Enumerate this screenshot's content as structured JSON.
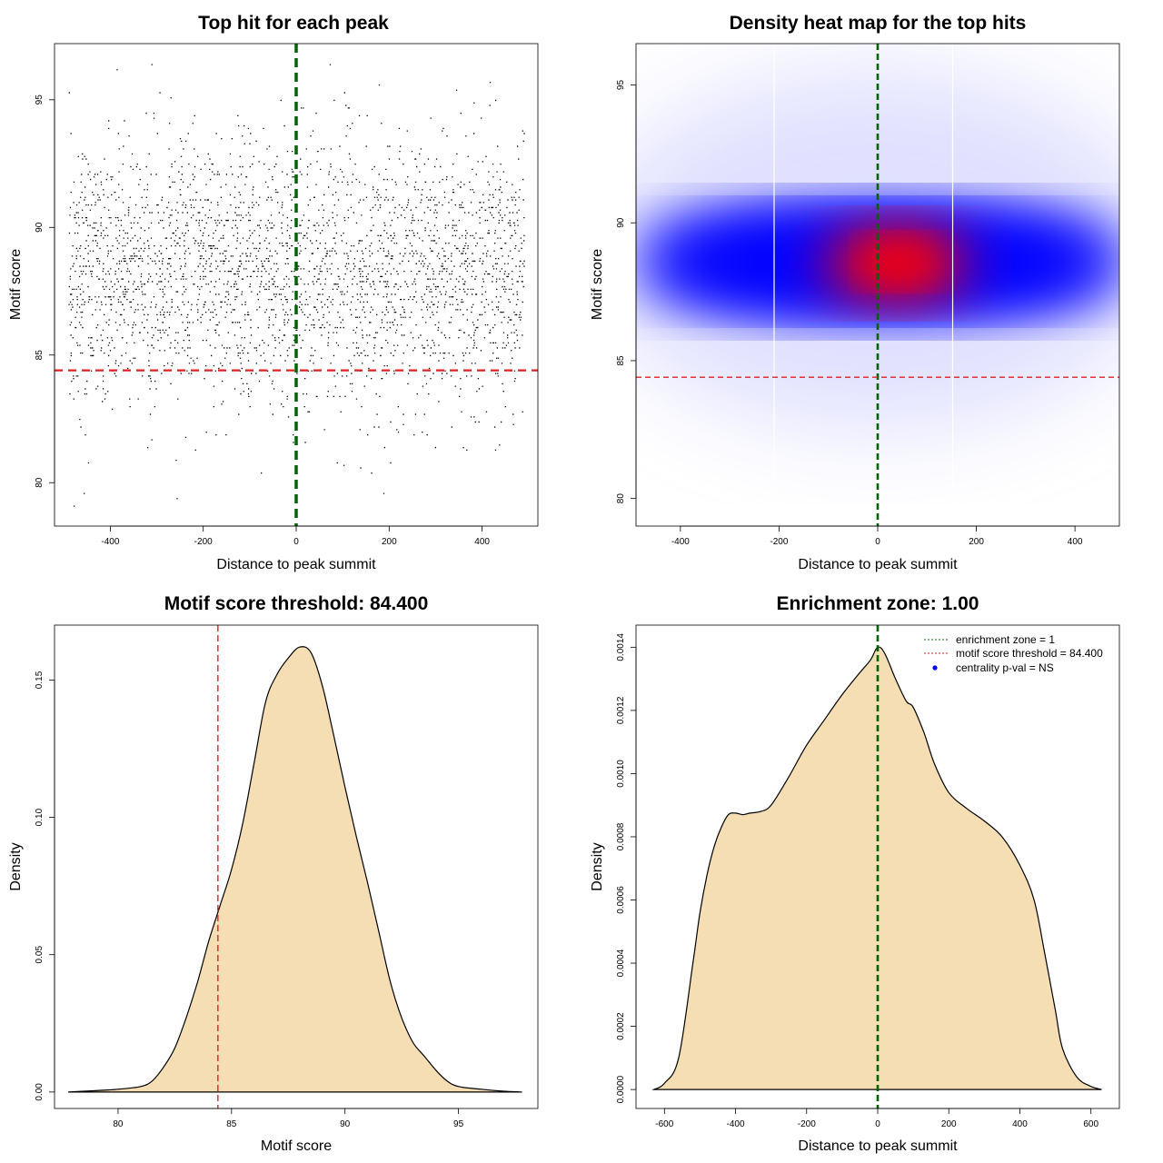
{
  "chart_data": [
    {
      "id": "scatter",
      "type": "scatter",
      "title": "Top hit for each peak",
      "xlabel": "Distance to peak summit",
      "ylabel": "Motif score",
      "xlim": [
        -520,
        520
      ],
      "ylim": [
        78.3,
        97.2
      ],
      "xticks": [
        -400,
        -200,
        0,
        200,
        400
      ],
      "xtick_labels": [
        "-400",
        "-200",
        "0",
        "200",
        "400"
      ],
      "yticks": [
        80,
        85,
        90,
        95
      ],
      "ytick_labels": [
        "80",
        "85",
        "90",
        "95"
      ],
      "vline": {
        "x": 0,
        "color": "#006400",
        "style": "dashed"
      },
      "hline": {
        "y": 84.4,
        "color": "#dd2222",
        "style": "dashed"
      },
      "points_description_count": 3000,
      "point_distribution": {
        "x_range": [
          -490,
          490
        ],
        "y_mean": 88.2,
        "y_sd": 2.6,
        "y_min": 79,
        "y_max": 96.5
      },
      "point_color": "#000000"
    },
    {
      "id": "heatmap",
      "type": "heatmap",
      "title": "Density heat map for the top hits",
      "xlabel": "Distance to peak summit",
      "ylabel": "Motif score",
      "xlim": [
        -490,
        490
      ],
      "ylim": [
        79.0,
        96.5
      ],
      "xticks": [
        -400,
        -200,
        0,
        200,
        400
      ],
      "xtick_labels": [
        "-400",
        "-200",
        "0",
        "200",
        "400"
      ],
      "yticks": [
        80,
        85,
        90,
        95
      ],
      "ytick_labels": [
        "80",
        "85",
        "90",
        "95"
      ],
      "vline": {
        "x": 0,
        "color": "#006400",
        "style": "dashed"
      },
      "hline": {
        "y": 84.4,
        "color": "#dd2222",
        "style": "dashed"
      },
      "white_vlines": [
        -210,
        152
      ],
      "peak": {
        "x": 55,
        "y": 88.5
      },
      "colors": [
        "#ffffff",
        "#0000ff",
        "#ff0000"
      ]
    },
    {
      "id": "scoredens",
      "type": "area",
      "title": "Motif score threshold: 84.400",
      "xlabel": "Motif score",
      "ylabel": "Density",
      "xlim": [
        77.2,
        98.5
      ],
      "ylim": [
        -0.006,
        0.17
      ],
      "xticks": [
        80,
        85,
        90,
        95
      ],
      "xtick_labels": [
        "80",
        "85",
        "90",
        "95"
      ],
      "yticks": [
        0.0,
        0.05,
        0.1,
        0.15
      ],
      "ytick_labels": [
        "0.00",
        "0.05",
        "0.10",
        "0.15"
      ],
      "vline": {
        "x": 84.4,
        "color": "#dd2222",
        "style": "dashed"
      },
      "fill": "#f5deb3",
      "x": [
        77.8,
        79,
        80,
        81,
        81.5,
        82,
        82.5,
        83,
        83.5,
        84,
        84.5,
        85,
        85.5,
        86,
        86.5,
        87,
        87.5,
        88,
        88.5,
        89,
        89.5,
        90,
        90.5,
        91,
        91.5,
        92,
        92.5,
        93,
        93.5,
        94,
        94.5,
        95,
        96,
        97,
        97.8
      ],
      "y": [
        0.0,
        0.0005,
        0.001,
        0.002,
        0.004,
        0.009,
        0.016,
        0.027,
        0.04,
        0.055,
        0.068,
        0.081,
        0.098,
        0.12,
        0.142,
        0.152,
        0.158,
        0.162,
        0.16,
        0.148,
        0.13,
        0.111,
        0.093,
        0.076,
        0.058,
        0.04,
        0.027,
        0.018,
        0.013,
        0.008,
        0.004,
        0.002,
        0.001,
        0.0003,
        0.0
      ]
    },
    {
      "id": "distdens",
      "type": "area",
      "title": "Enrichment zone: 1.00",
      "xlabel": "Distance to peak summit",
      "ylabel": "Density",
      "xlim": [
        -680,
        680
      ],
      "ylim": [
        -6e-05,
        0.00147
      ],
      "xticks": [
        -600,
        -400,
        -200,
        0,
        200,
        400,
        600
      ],
      "xtick_labels": [
        "-600",
        "-400",
        "-200",
        "0",
        "200",
        "400",
        "600"
      ],
      "yticks": [
        0.0,
        0.0002,
        0.0004,
        0.0006,
        0.0008,
        0.001,
        0.0012,
        0.0014
      ],
      "ytick_labels": [
        "0.0000",
        "0.0002",
        "0.0004",
        "0.0006",
        "0.0008",
        "0.0010",
        "0.0012",
        "0.0014"
      ],
      "vline": {
        "x": 0,
        "color": "#006400",
        "style": "dashed"
      },
      "fill": "#f5deb3",
      "x": [
        -630,
        -600,
        -560,
        -520,
        -500,
        -480,
        -460,
        -440,
        -420,
        -400,
        -380,
        -360,
        -330,
        -300,
        -250,
        -200,
        -150,
        -100,
        -50,
        -20,
        0,
        20,
        50,
        80,
        100,
        130,
        160,
        200,
        250,
        300,
        350,
        400,
        440,
        470,
        500,
        520,
        560,
        600,
        630
      ],
      "y": [
        0.0,
        2e-05,
        0.0001,
        0.0004,
        0.00056,
        0.00068,
        0.00077,
        0.00083,
        0.00087,
        0.000875,
        0.00087,
        0.000875,
        0.00088,
        0.0009,
        0.00099,
        0.00109,
        0.00117,
        0.00125,
        0.00132,
        0.00136,
        0.0014,
        0.00138,
        0.0013,
        0.00123,
        0.00121,
        0.00113,
        0.00103,
        0.00094,
        0.00089,
        0.00085,
        0.0008,
        0.00071,
        0.0006,
        0.00043,
        0.00025,
        0.00013,
        4e-05,
        1e-05,
        0.0
      ],
      "legend": [
        {
          "label": "enrichment zone = 1",
          "color": "#006400",
          "kind": "dotted-line"
        },
        {
          "label": "motif score threshold = 84.400",
          "color": "#dd2222",
          "kind": "dotted-line"
        },
        {
          "label": "centrality p-val = NS",
          "color": "#0000ff",
          "kind": "point"
        }
      ],
      "legend_position": "top-right"
    }
  ]
}
